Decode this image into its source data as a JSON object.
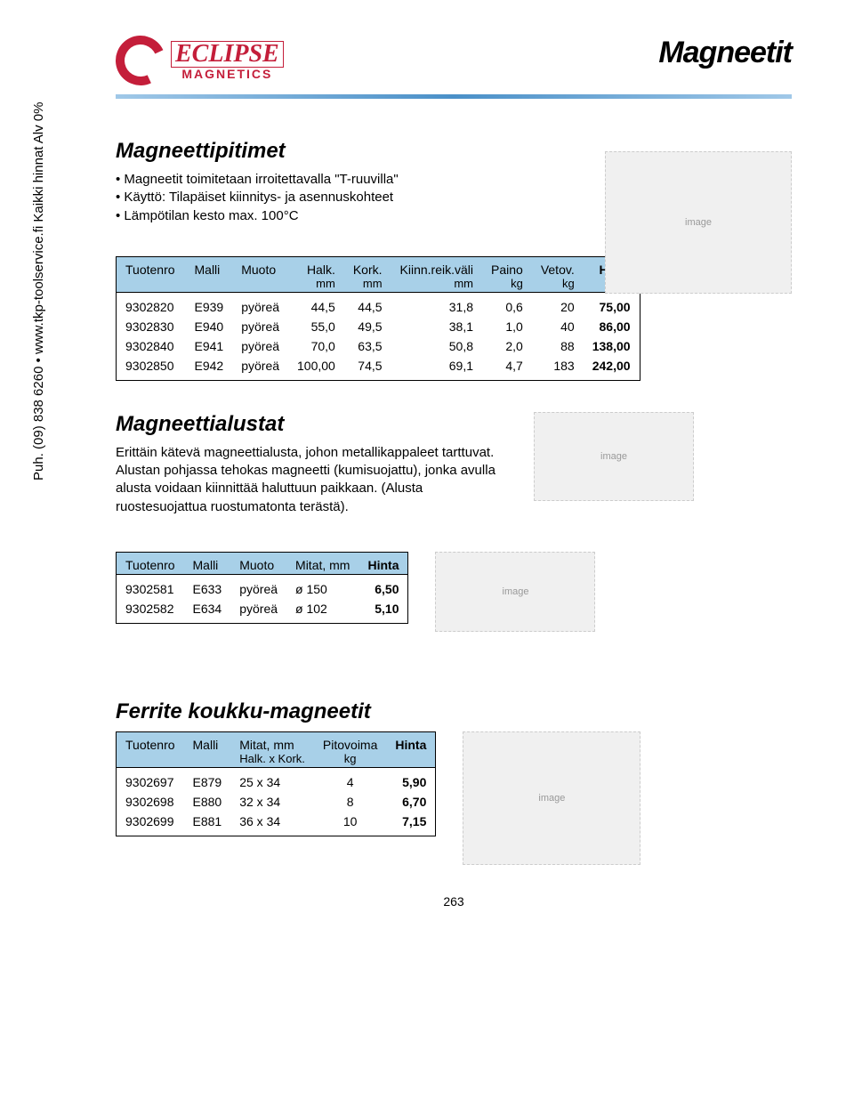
{
  "logo": {
    "brand": "ECLIPSE",
    "sub": "MAGNETICS"
  },
  "page_title": "Magneetit",
  "side_label": "Puh. (09) 838 6260 • www.tkp-toolservice.fi\nKaikki hinnat Alv 0%",
  "section1": {
    "title": "Magneettipitimet",
    "bullets": [
      "Magneetit toimitetaan irroitettavalla \"T-ruuvilla\"",
      "Käyttö: Tilapäiset kiinnitys- ja asennuskohteet",
      "Lämpötilan kesto max. 100°C"
    ],
    "headers": [
      "Tuotenro",
      "Malli",
      "Muoto",
      "Halk.",
      "Kork.",
      "Kiinn.reik.väli",
      "Paino",
      "Vetov.",
      "Hinta"
    ],
    "subheaders": [
      "",
      "",
      "",
      "mm",
      "mm",
      "mm",
      "kg",
      "kg",
      ""
    ],
    "rows": [
      [
        "9302820",
        "E939",
        "pyöreä",
        "44,5",
        "44,5",
        "31,8",
        "0,6",
        "20",
        "75,00"
      ],
      [
        "9302830",
        "E940",
        "pyöreä",
        "55,0",
        "49,5",
        "38,1",
        "1,0",
        "40",
        "86,00"
      ],
      [
        "9302840",
        "E941",
        "pyöreä",
        "70,0",
        "63,5",
        "50,8",
        "2,0",
        "88",
        "138,00"
      ],
      [
        "9302850",
        "E942",
        "pyöreä",
        "100,00",
        "74,5",
        "69,1",
        "4,7",
        "183",
        "242,00"
      ]
    ]
  },
  "section2": {
    "title": "Magneettialustat",
    "desc": "Erittäin kätevä magneettialusta, johon metallikappaleet tarttuvat. Alustan pohjassa tehokas magneetti (kumisuojattu), jonka avulla alusta voidaan kiinnittää haluttuun paikkaan. (Alusta ruostesuojattua ruostumatonta terästä).",
    "headers": [
      "Tuotenro",
      "Malli",
      "Muoto",
      "Mitat, mm",
      "Hinta"
    ],
    "rows": [
      [
        "9302581",
        "E633",
        "pyöreä",
        "ø 150",
        "6,50"
      ],
      [
        "9302582",
        "E634",
        "pyöreä",
        "ø 102",
        "5,10"
      ]
    ]
  },
  "section3": {
    "title": "Ferrite koukku-magneetit",
    "headers": [
      "Tuotenro",
      "Malli",
      "Mitat, mm",
      "Pitovoima",
      "Hinta"
    ],
    "subheaders": [
      "",
      "",
      "Halk. x Kork.",
      "kg",
      ""
    ],
    "rows": [
      [
        "9302697",
        "E879",
        "25 x 34",
        "4",
        "5,90"
      ],
      [
        "9302698",
        "E880",
        "32 x 34",
        "8",
        "6,70"
      ],
      [
        "9302699",
        "E881",
        "36 x 34",
        "10",
        "7,15"
      ]
    ]
  },
  "page_number": "263",
  "colors": {
    "brand_red": "#c41e3a",
    "header_blue": "#a8d0e8",
    "divider_blue": "#4a90c8"
  }
}
